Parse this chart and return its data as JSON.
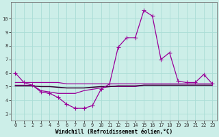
{
  "xlabel": "Windchill (Refroidissement éolien,°C)",
  "bg_color": "#cceee8",
  "line_color": "#990099",
  "x_values": [
    0,
    1,
    2,
    3,
    4,
    5,
    6,
    7,
    8,
    9,
    10,
    11,
    12,
    13,
    14,
    15,
    16,
    17,
    18,
    19,
    20,
    21,
    22,
    23
  ],
  "main_line": [
    6.0,
    5.3,
    5.1,
    4.6,
    4.5,
    4.2,
    3.7,
    3.4,
    3.4,
    3.6,
    4.8,
    5.2,
    7.9,
    8.6,
    8.6,
    10.6,
    10.2,
    7.0,
    7.5,
    5.4,
    5.3,
    5.3,
    5.9,
    5.2
  ],
  "line2": [
    5.3,
    5.3,
    5.3,
    5.3,
    5.3,
    5.3,
    5.2,
    5.2,
    5.2,
    5.2,
    5.2,
    5.2,
    5.2,
    5.2,
    5.2,
    5.2,
    5.2,
    5.2,
    5.2,
    5.2,
    5.2,
    5.2,
    5.2,
    5.2
  ],
  "line3": [
    5.1,
    5.1,
    5.1,
    4.7,
    4.6,
    4.5,
    4.5,
    4.5,
    4.7,
    4.8,
    4.9,
    5.0,
    5.0,
    5.0,
    5.0,
    5.1,
    5.1,
    5.1,
    5.1,
    5.1,
    5.1,
    5.1,
    5.1,
    5.1
  ],
  "line4": [
    5.05,
    5.05,
    5.05,
    5.0,
    5.0,
    4.95,
    4.9,
    4.9,
    4.9,
    4.95,
    5.0,
    5.0,
    5.05,
    5.05,
    5.05,
    5.1,
    5.1,
    5.1,
    5.1,
    5.1,
    5.1,
    5.1,
    5.1,
    5.1
  ],
  "ylim": [
    2.5,
    11.2
  ],
  "yticks": [
    3,
    4,
    5,
    6,
    7,
    8,
    9,
    10
  ],
  "grid_color": "#aaddd6",
  "xlabel_fontsize": 5.5,
  "tick_fontsize": 5.0
}
